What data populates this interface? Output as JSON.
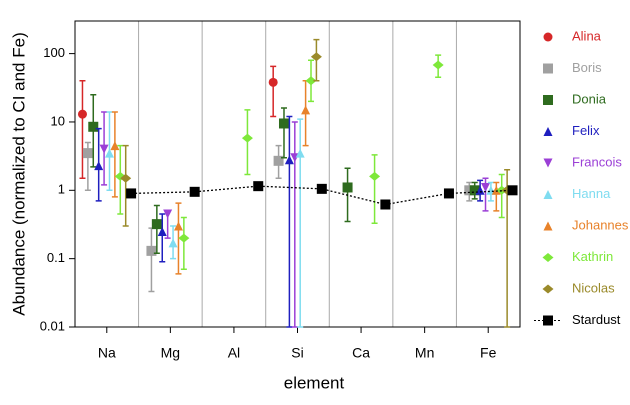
{
  "chart_data": {
    "type": "errorbar-scatter",
    "x_label": "element",
    "y_label": "Abundance (normalized to CI and Fe)",
    "categories": [
      "Na",
      "Mg",
      "Al",
      "Si",
      "Ca",
      "Mn",
      "Fe"
    ],
    "y_log": true,
    "ylim": [
      0.01,
      300
    ],
    "yticks": [
      0.01,
      0.1,
      1,
      10,
      100
    ],
    "legend": "right",
    "series": [
      {
        "name": "Alina",
        "color": "#d62728",
        "marker": "circle",
        "values": [
          13,
          null,
          null,
          38,
          null,
          null,
          null
        ],
        "lower": [
          1.5,
          null,
          null,
          12,
          null,
          null,
          null
        ],
        "upper": [
          40,
          null,
          null,
          65,
          null,
          null,
          null
        ]
      },
      {
        "name": "Boris",
        "color": "#a0a0a0",
        "marker": "square",
        "values": [
          3.5,
          0.13,
          null,
          2.7,
          null,
          null,
          1.0
        ],
        "lower": [
          1.0,
          0.033,
          null,
          1.5,
          null,
          null,
          0.7
        ],
        "upper": [
          5,
          0.28,
          null,
          4.5,
          null,
          null,
          1.3
        ]
      },
      {
        "name": "Donia",
        "color": "#2e6b1e",
        "marker": "square",
        "values": [
          8.5,
          0.32,
          null,
          9.5,
          1.1,
          null,
          1.0
        ],
        "lower": [
          2.2,
          0.12,
          null,
          3,
          0.35,
          null,
          0.75
        ],
        "upper": [
          25,
          0.6,
          null,
          16,
          2.1,
          null,
          1.3
        ]
      },
      {
        "name": "Felix",
        "color": "#1f1fbf",
        "marker": "triangle-up",
        "values": [
          2.3,
          0.25,
          null,
          2.8,
          null,
          null,
          1.0
        ],
        "lower": [
          0.7,
          0.09,
          null,
          0.01,
          null,
          null,
          0.7
        ],
        "upper": [
          8,
          0.45,
          null,
          12,
          null,
          null,
          1.4
        ]
      },
      {
        "name": "Francois",
        "color": "#9b3fd6",
        "marker": "triangle-down",
        "values": [
          4,
          0.45,
          null,
          3,
          null,
          null,
          1.1
        ],
        "lower": [
          1.2,
          0.2,
          null,
          0.01,
          null,
          null,
          0.5
        ],
        "upper": [
          14,
          0.5,
          null,
          10,
          null,
          null,
          1.5
        ]
      },
      {
        "name": "Hanna",
        "color": "#7fdcf0",
        "marker": "triangle-up",
        "values": [
          3.5,
          0.17,
          null,
          3.5,
          null,
          null,
          1.0
        ],
        "lower": [
          1.0,
          0.1,
          null,
          0.01,
          null,
          null,
          0.7
        ],
        "upper": [
          14,
          0.3,
          null,
          11,
          null,
          null,
          1.3
        ]
      },
      {
        "name": "Johannes",
        "color": "#e8822a",
        "marker": "triangle-up",
        "values": [
          4.5,
          0.3,
          null,
          15,
          null,
          null,
          1.0
        ],
        "lower": [
          0.8,
          0.06,
          null,
          4.5,
          null,
          null,
          0.5
        ],
        "upper": [
          14,
          0.65,
          null,
          40,
          null,
          null,
          1.3
        ]
      },
      {
        "name": "Kathrin",
        "color": "#7ee83a",
        "marker": "diamond",
        "values": [
          1.6,
          0.2,
          5.8,
          40,
          1.6,
          68,
          1.0
        ],
        "lower": [
          0.45,
          0.07,
          1.7,
          20,
          0.33,
          45,
          0.4
        ],
        "upper": [
          4.5,
          0.4,
          15,
          80,
          3.3,
          95,
          1.7
        ]
      },
      {
        "name": "Nicolas",
        "color": "#9a8a2a",
        "marker": "diamond",
        "values": [
          1.5,
          null,
          null,
          90,
          null,
          null,
          1.0
        ],
        "lower": [
          0.3,
          null,
          null,
          40,
          null,
          null,
          0.01
        ],
        "upper": [
          4.5,
          null,
          null,
          160,
          null,
          null,
          2
        ]
      },
      {
        "name": "Stardust",
        "color": "#000000",
        "marker": "square",
        "line": "dotted",
        "values": [
          0.9,
          0.95,
          1.15,
          1.05,
          0.62,
          0.9,
          1.0
        ]
      }
    ]
  }
}
